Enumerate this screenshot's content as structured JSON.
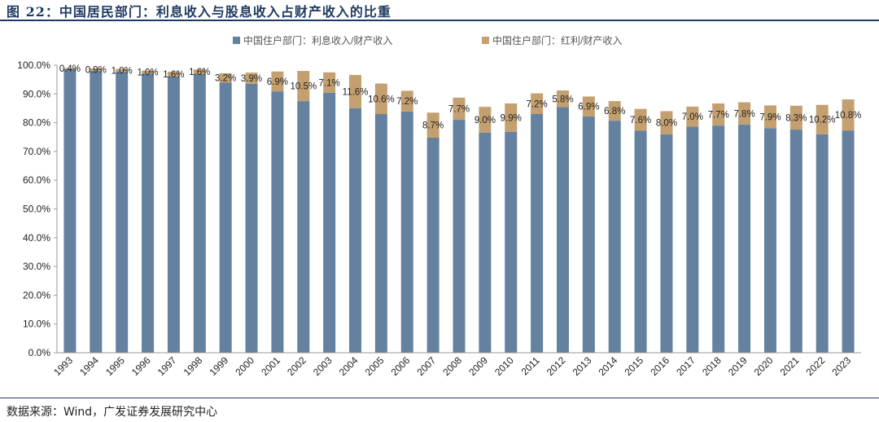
{
  "figure_title": "图 22：中国居民部门：利息收入与股息收入占财产收入的比重",
  "source": "数据来源：Wind，广发证券发展研究中心",
  "colors": {
    "interest": "#64829f",
    "dividend": "#c4a070",
    "title": "#1f3a5f"
  },
  "chart_data": {
    "type": "bar",
    "stacked": true,
    "categories": [
      "1993",
      "1994",
      "1995",
      "1996",
      "1997",
      "1998",
      "1999",
      "2000",
      "2001",
      "2002",
      "2003",
      "2004",
      "2005",
      "2006",
      "2007",
      "2008",
      "2009",
      "2010",
      "2011",
      "2012",
      "2013",
      "2014",
      "2015",
      "2016",
      "2017",
      "2018",
      "2019",
      "2020",
      "2021",
      "2022",
      "2023"
    ],
    "series": [
      {
        "name": "中国住户部门：利息收入/财产收入",
        "color": "#64829f",
        "values": [
          98.6,
          98.0,
          97.7,
          97.1,
          96.1,
          96.9,
          94.0,
          93.5,
          90.9,
          87.5,
          90.4,
          85.0,
          83.0,
          83.9,
          74.8,
          81.0,
          76.5,
          76.8,
          83.0,
          85.4,
          82.2,
          80.7,
          77.2,
          76.0,
          78.6,
          79.0,
          79.3,
          78.1,
          77.6,
          76.0,
          77.3
        ]
      },
      {
        "name": "中国住户部门：红利/财产收入",
        "color": "#c4a070",
        "values": [
          0.4,
          0.9,
          1.0,
          1.0,
          1.6,
          1.6,
          3.2,
          3.9,
          6.9,
          10.5,
          7.1,
          11.6,
          10.6,
          7.2,
          8.7,
          7.7,
          9.0,
          9.9,
          7.2,
          5.8,
          6.9,
          6.8,
          7.6,
          8.0,
          7.0,
          7.7,
          7.8,
          7.9,
          8.3,
          10.2,
          10.8
        ]
      }
    ],
    "labels": [
      "0.4%",
      "0.9%",
      "1.0%",
      "1.0%",
      "1.6%",
      "1.6%",
      "3.2%",
      "3.9%",
      "6.9%",
      "10.5%",
      "7.1%",
      "11.6%",
      "10.6%",
      "7.2%",
      "8.7%",
      "7.7%",
      "9.0%",
      "9.9%",
      "7.2%",
      "5.8%",
      "6.9%",
      "6.8%",
      "7.6%",
      "8.0%",
      "7.0%",
      "7.7%",
      "7.8%",
      "7.9%",
      "8.3%",
      "10.2%",
      "10.8%"
    ],
    "ylim": [
      0,
      100
    ],
    "yticks": [
      0,
      10,
      20,
      30,
      40,
      50,
      60,
      70,
      80,
      90,
      100
    ],
    "ytick_labels": [
      "0.0%",
      "10.0%",
      "20.0%",
      "30.0%",
      "40.0%",
      "50.0%",
      "60.0%",
      "70.0%",
      "80.0%",
      "90.0%",
      "100.0%"
    ],
    "legend_position": "top",
    "grid": false
  }
}
